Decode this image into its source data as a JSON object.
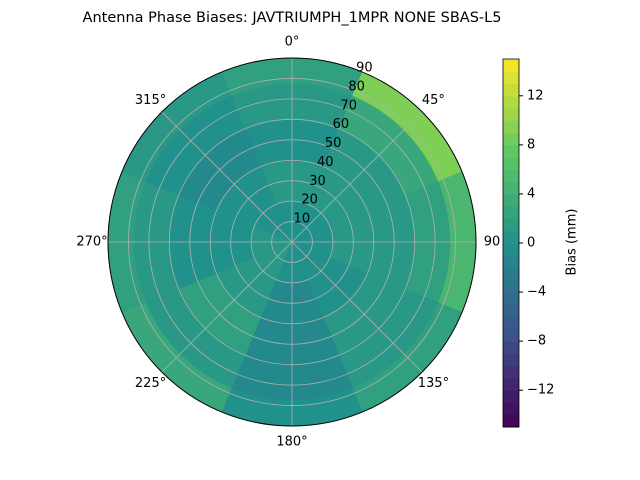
{
  "chart_data": {
    "type": "polar-contour",
    "title": "Antenna Phase Biases: JAVTRIUMPH_1MPR NONE SBAS-L5",
    "theta": [
      0,
      45,
      90,
      135,
      180,
      225,
      270,
      315
    ],
    "r": [
      10,
      30,
      50,
      70,
      85
    ],
    "values": [
      [
        0,
        1,
        0,
        1,
        2
      ],
      [
        0,
        1,
        1,
        3,
        9
      ],
      [
        0,
        1,
        1,
        2,
        5
      ],
      [
        0,
        0,
        1,
        1,
        2
      ],
      [
        0,
        -1,
        -1,
        -1,
        0
      ],
      [
        1,
        1,
        2,
        1,
        3
      ],
      [
        1,
        0,
        0,
        1,
        2
      ],
      [
        0,
        0,
        -1,
        0,
        1
      ]
    ],
    "rlim": [
      0,
      90
    ],
    "rticks": [
      10,
      20,
      30,
      40,
      50,
      60,
      70,
      80,
      90
    ],
    "thetaticks": [
      {
        "value": 0,
        "label": "0°"
      },
      {
        "value": 45,
        "label": "45°"
      },
      {
        "value": 90,
        "label": "90"
      },
      {
        "value": 135,
        "label": "135°"
      },
      {
        "value": 180,
        "label": "180°"
      },
      {
        "value": 225,
        "label": "225°"
      },
      {
        "value": 270,
        "label": "270°"
      },
      {
        "value": 315,
        "label": "315°"
      }
    ],
    "colormap": "viridis",
    "clim": [
      -15,
      15
    ],
    "cticks": [
      {
        "value": -12,
        "label": "−12"
      },
      {
        "value": -8,
        "label": "−8"
      },
      {
        "value": -4,
        "label": "−4"
      },
      0,
      4,
      8,
      12
    ],
    "colorbar_label": "Bias (mm)",
    "grid": true
  }
}
